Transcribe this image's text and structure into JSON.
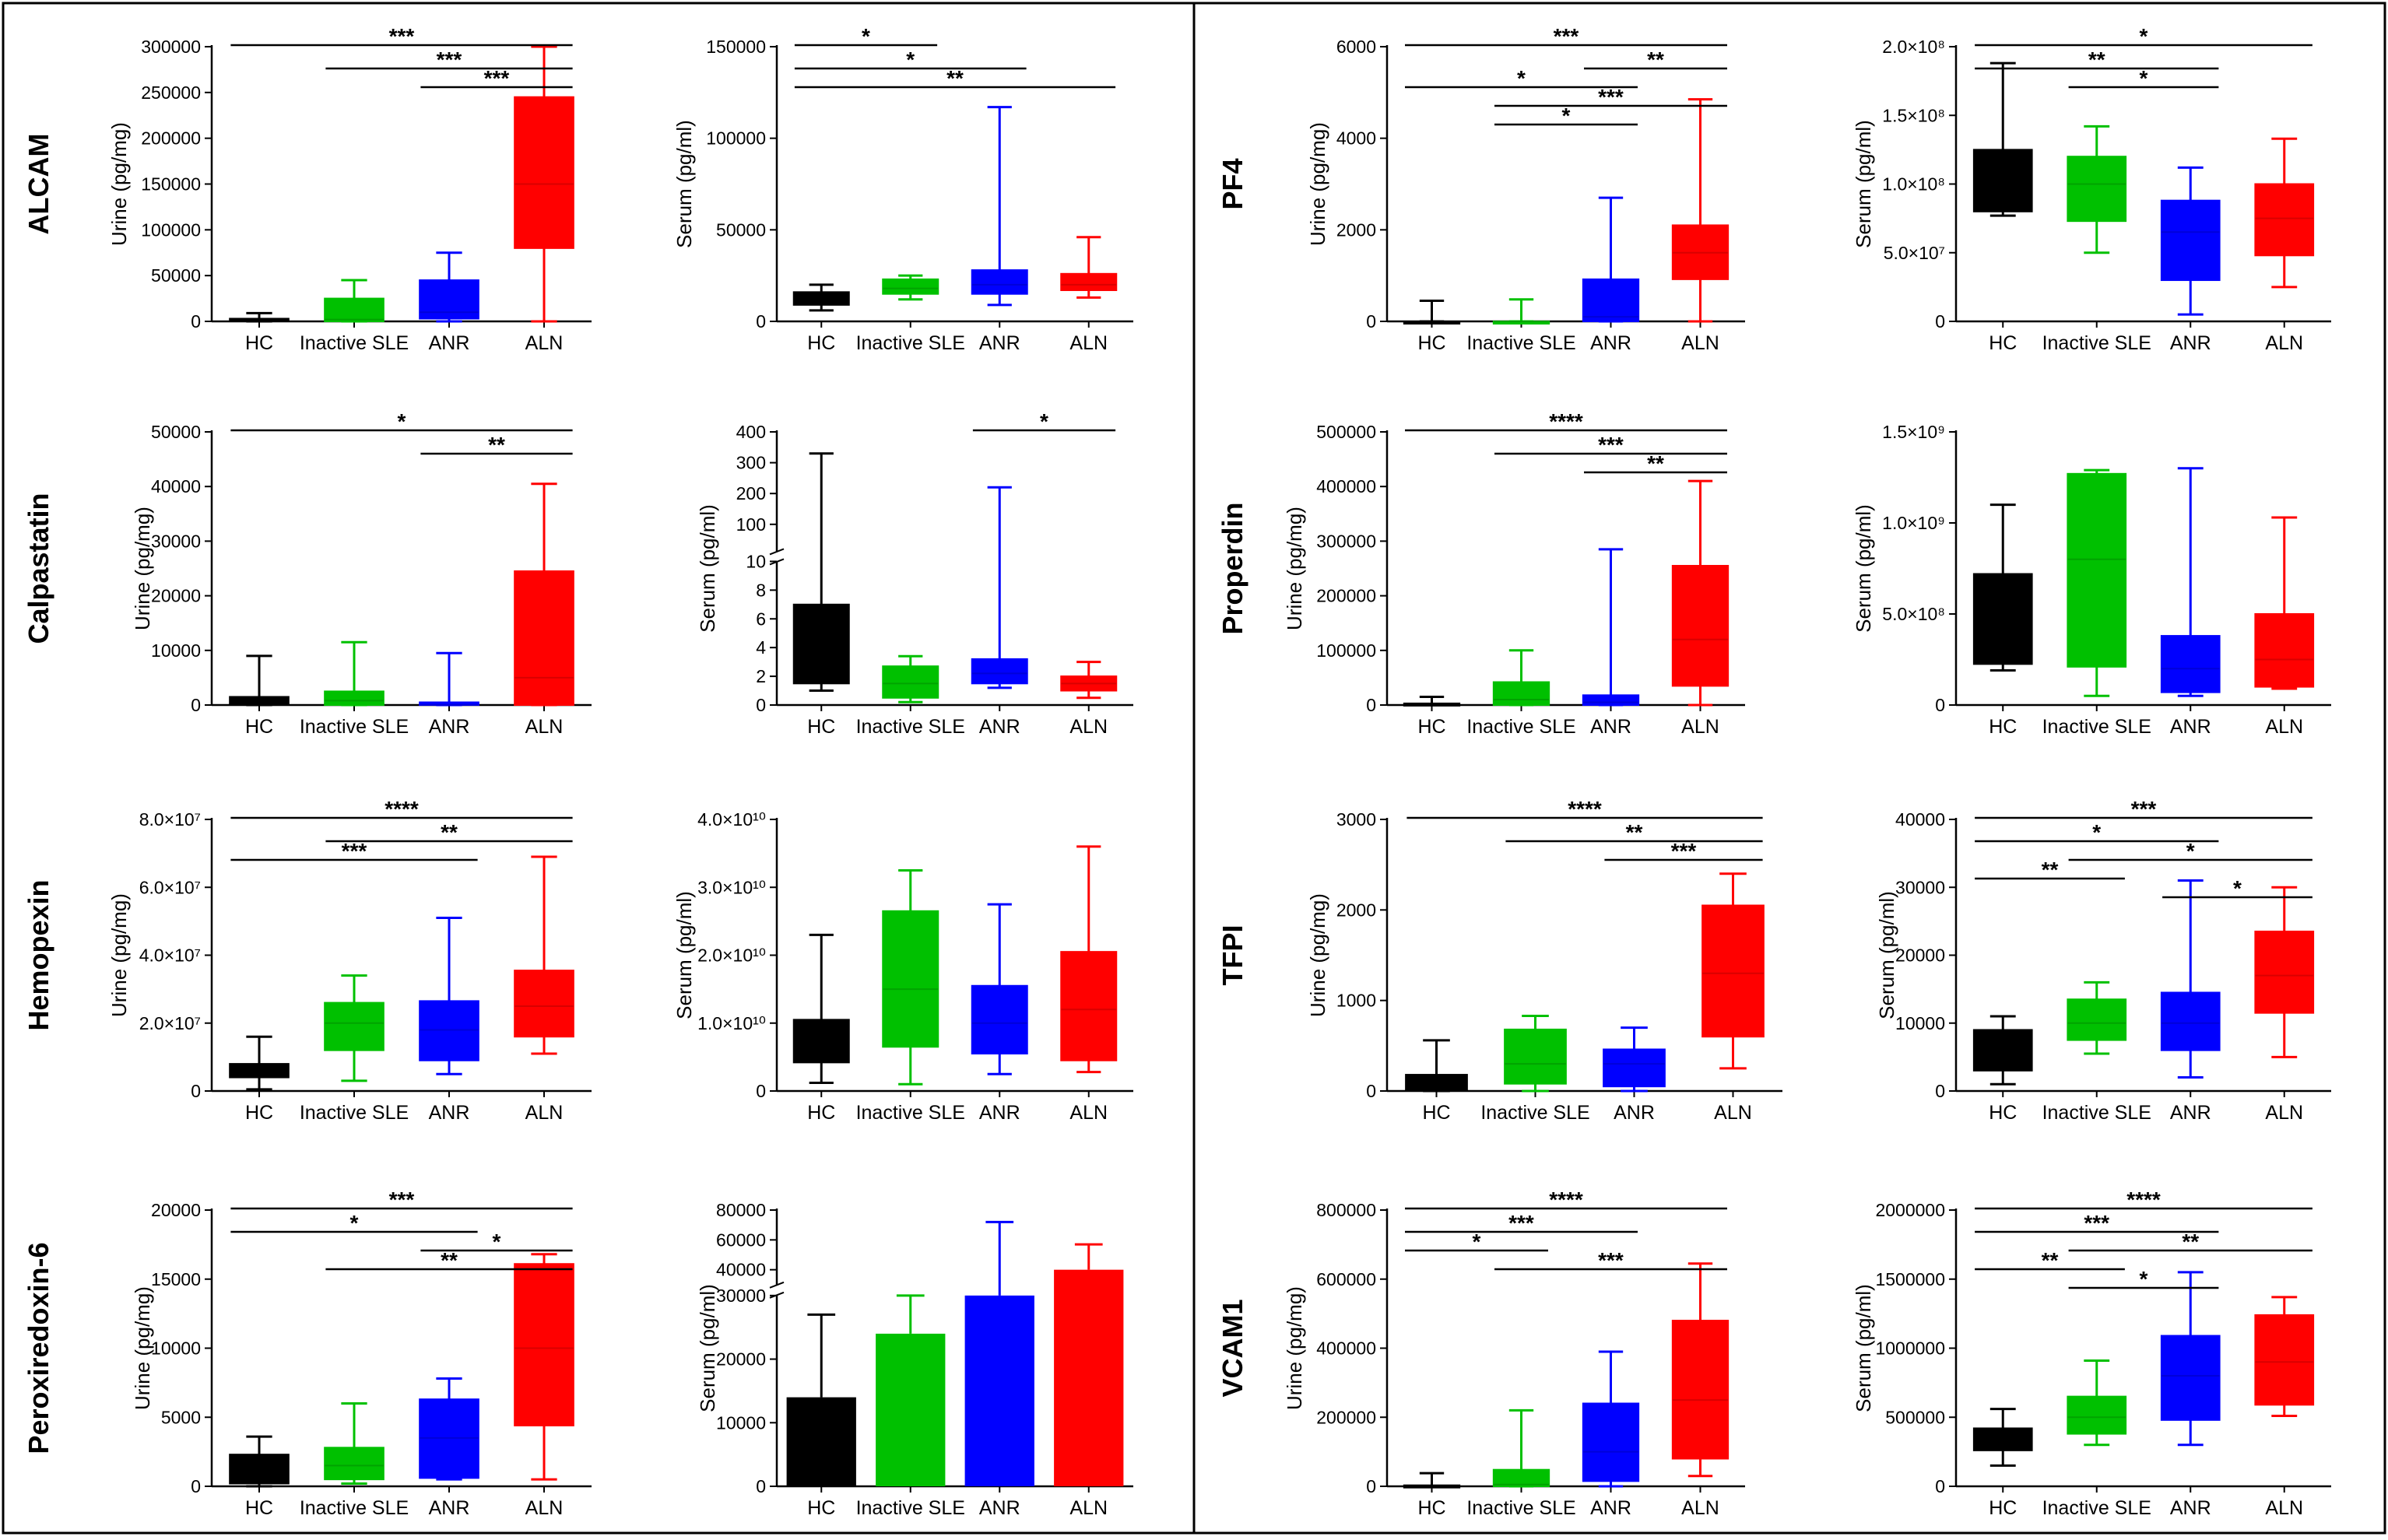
{
  "groups": [
    "HC",
    "Inactive SLE",
    "ANR",
    "ALN"
  ],
  "colors": [
    "#000000",
    "#00c000",
    "#0000ff",
    "#ff0000"
  ],
  "chart_data": [
    {
      "type": "box",
      "marker": "ALCAM",
      "title": "ALCAM",
      "ylabel": "Urine (pg/mg)",
      "ticks": [
        "0",
        "50000",
        "100000",
        "150000",
        "200000",
        "250000",
        "300000"
      ],
      "ylim": [
        0,
        300000
      ],
      "boxes": [
        [
          0,
          0,
          2000,
          3000,
          9000
        ],
        [
          0,
          0,
          2000,
          25000,
          45000
        ],
        [
          0,
          3000,
          10000,
          45000,
          75000
        ],
        [
          0,
          80000,
          150000,
          245000,
          300000
        ]
      ],
      "sig": [
        {
          "from": "HC",
          "to": "ALN",
          "label": "***"
        },
        {
          "from": "Inactive SLE",
          "to": "ALN",
          "label": "***"
        },
        {
          "from": "ANR",
          "to": "ALN",
          "label": "***"
        }
      ]
    },
    {
      "type": "box",
      "marker": "ALCAM",
      "title": "",
      "ylabel": "Serum (pg/ml)",
      "ticks": [
        "0",
        "50000",
        "100000",
        "150000"
      ],
      "ylim": [
        0,
        150000
      ],
      "boxes": [
        [
          6000,
          9000,
          13000,
          16000,
          20000
        ],
        [
          12000,
          15000,
          18000,
          23000,
          25000
        ],
        [
          9000,
          15000,
          20000,
          28000,
          117000
        ],
        [
          13000,
          17000,
          20000,
          26000,
          46000
        ]
      ],
      "sig": [
        {
          "from": "HC",
          "to": "Inactive SLE",
          "label": "*"
        },
        {
          "from": "HC",
          "to": "ANR",
          "label": "*"
        },
        {
          "from": "HC",
          "to": "ALN",
          "label": "**"
        }
      ]
    },
    {
      "type": "box",
      "marker": "PF4",
      "title": "PF4",
      "ylabel": "Urine (pg/mg)",
      "ticks": [
        "0",
        "2000",
        "4000",
        "6000"
      ],
      "ylim": [
        0,
        6000
      ],
      "boxes": [
        [
          0,
          0,
          0,
          0,
          450
        ],
        [
          0,
          0,
          0,
          0,
          480
        ],
        [
          0,
          0,
          100,
          920,
          2700
        ],
        [
          0,
          920,
          1500,
          2100,
          4850
        ]
      ],
      "sig": [
        {
          "from": "HC",
          "to": "ALN",
          "label": "***"
        },
        {
          "from": "ANR",
          "to": "ALN",
          "label": "**"
        },
        {
          "from": "HC",
          "to": "ANR",
          "label": "*"
        },
        {
          "from": "Inactive SLE",
          "to": "ALN",
          "label": "***"
        },
        {
          "from": "Inactive SLE",
          "to": "ANR",
          "label": "*"
        }
      ]
    },
    {
      "type": "box",
      "marker": "PF4",
      "title": "",
      "ylabel": "Serum (pg/ml)",
      "ticks": [
        "0",
        "5.0×10⁷",
        "1.0×10⁸",
        "1.5×10⁸",
        "2.0×10⁸"
      ],
      "ylim": [
        0,
        200000000
      ],
      "boxes": [
        [
          77000000,
          80000000,
          92000000,
          125000000,
          188000000
        ],
        [
          50000000,
          73000000,
          100000000,
          120000000,
          142000000
        ],
        [
          5000000,
          30000000,
          65000000,
          88000000,
          112000000
        ],
        [
          25000000,
          48000000,
          75000000,
          100000000,
          133000000
        ]
      ],
      "sig": [
        {
          "from": "HC",
          "to": "ALN",
          "label": "*"
        },
        {
          "from": "HC",
          "to": "ANR",
          "label": "**"
        },
        {
          "from": "Inactive SLE",
          "to": "ANR",
          "label": "*"
        }
      ]
    },
    {
      "type": "box",
      "marker": "Calpastatin",
      "title": "Calpastatin",
      "ylabel": "Urine (pg/mg)",
      "ticks": [
        "0",
        "10000",
        "20000",
        "30000",
        "40000",
        "50000"
      ],
      "ylim": [
        0,
        50000
      ],
      "boxes": [
        [
          0,
          0,
          500,
          1500,
          9000
        ],
        [
          0,
          0,
          800,
          2500,
          11500
        ],
        [
          0,
          0,
          0,
          500,
          9500
        ],
        [
          0,
          0,
          5000,
          24500,
          40500
        ]
      ],
      "sig": [
        {
          "from": "HC",
          "to": "ALN",
          "label": "*"
        },
        {
          "from": "ANR",
          "to": "ALN",
          "label": "**"
        }
      ]
    },
    {
      "type": "box-broken",
      "marker": "Calpastatin",
      "title": "",
      "ylabel": "Serum (pg/ml)",
      "ticks": [
        "0",
        "2",
        "4",
        "6",
        "8",
        "10",
        "100",
        "200",
        "300",
        "400"
      ],
      "ylim": [
        0,
        400
      ],
      "boxes": [
        [
          1,
          1.5,
          3,
          7,
          330
        ],
        [
          0.2,
          0.5,
          1.5,
          2.7,
          3.4
        ],
        [
          1.2,
          1.5,
          2.2,
          3.2,
          220
        ],
        [
          0.5,
          1,
          1.5,
          2,
          3
        ]
      ],
      "sig": [
        {
          "from": "ANR",
          "to": "ALN",
          "label": "*"
        }
      ]
    },
    {
      "type": "box",
      "marker": "Properdin",
      "title": "Properdin",
      "ylabel": "Urine (pg/mg)",
      "ticks": [
        "0",
        "100000",
        "200000",
        "300000",
        "400000",
        "500000"
      ],
      "ylim": [
        0,
        500000
      ],
      "boxes": [
        [
          0,
          0,
          0,
          3000,
          15000
        ],
        [
          0,
          0,
          10000,
          42000,
          100000
        ],
        [
          0,
          0,
          5000,
          18000,
          285000
        ],
        [
          0,
          35000,
          120000,
          255000,
          410000
        ]
      ],
      "sig": [
        {
          "from": "HC",
          "to": "ALN",
          "label": "****"
        },
        {
          "from": "Inactive SLE",
          "to": "ALN",
          "label": "***"
        },
        {
          "from": "ANR",
          "to": "ALN",
          "label": "**"
        }
      ]
    },
    {
      "type": "box",
      "marker": "Properdin",
      "title": "",
      "ylabel": "Serum (pg/ml)",
      "ticks": [
        "0",
        "5.0×10⁸",
        "1.0×10⁹",
        "1.5×10⁹"
      ],
      "ylim": [
        0,
        1500000000
      ],
      "boxes": [
        [
          190000000,
          225000000,
          400000000,
          720000000,
          1100000000
        ],
        [
          50000000,
          210000000,
          800000000,
          1270000000,
          1290000000
        ],
        [
          50000000,
          70000000,
          200000000,
          380000000,
          1300000000
        ],
        [
          90000000,
          100000000,
          250000000,
          500000000,
          1030000000
        ]
      ],
      "sig": []
    },
    {
      "type": "box",
      "marker": "Hemopexin",
      "title": "Hemopexin",
      "ylabel": "Urine (pg/mg)",
      "ticks": [
        "0",
        "2.0×10⁷",
        "4.0×10⁷",
        "6.0×10⁷",
        "8.0×10⁷"
      ],
      "ylim": [
        0,
        80000000
      ],
      "boxes": [
        [
          500000,
          4000000,
          6000000,
          8000000,
          16000000
        ],
        [
          3000000,
          12000000,
          20000000,
          26000000,
          34000000
        ],
        [
          5000000,
          9000000,
          18000000,
          26500000,
          51000000
        ],
        [
          11000000,
          16000000,
          25000000,
          35500000,
          69000000
        ]
      ],
      "sig": [
        {
          "from": "HC",
          "to": "ALN",
          "label": "****"
        },
        {
          "from": "Inactive SLE",
          "to": "ALN",
          "label": "**"
        },
        {
          "from": "HC",
          "to": "ANR",
          "label": "***"
        }
      ]
    },
    {
      "type": "box",
      "marker": "Hemopexin",
      "title": "",
      "ylabel": "Serum (pg/ml)",
      "ticks": [
        "0",
        "1.0×10¹⁰",
        "2.0×10¹⁰",
        "3.0×10¹⁰",
        "4.0×10¹⁰"
      ],
      "ylim": [
        0,
        40000000000
      ],
      "boxes": [
        [
          1200000000,
          4200000000,
          7000000000,
          10500000000,
          23000000000
        ],
        [
          1000000000,
          6500000000,
          15000000000,
          26500000000,
          32500000000
        ],
        [
          2500000000,
          5500000000,
          10000000000,
          15500000000,
          27500000000
        ],
        [
          2800000000,
          4500000000,
          12000000000,
          20500000000,
          36000000000
        ]
      ],
      "sig": []
    },
    {
      "type": "box",
      "marker": "TFPI",
      "title": "TFPI",
      "ylabel": "Urine (pg/mg)",
      "ticks": [
        "0",
        "1000",
        "2000",
        "3000"
      ],
      "ylim": [
        0,
        3000
      ],
      "boxes": [
        [
          0,
          0,
          50,
          180,
          560
        ],
        [
          0,
          80,
          300,
          680,
          830
        ],
        [
          0,
          50,
          300,
          460,
          700
        ],
        [
          250,
          600,
          1300,
          2050,
          2400
        ]
      ],
      "sig": [
        {
          "from": "HC",
          "to": "ALN",
          "label": "****"
        },
        {
          "from": "Inactive SLE",
          "to": "ALN",
          "label": "**"
        },
        {
          "from": "ANR",
          "to": "ALN",
          "label": "***"
        }
      ]
    },
    {
      "type": "box",
      "marker": "TFPI",
      "title": "",
      "ylabel": "Serum (pg/ml)",
      "ticks": [
        "0",
        "10000",
        "20000",
        "30000",
        "40000"
      ],
      "ylim": [
        0,
        40000
      ],
      "boxes": [
        [
          1000,
          3000,
          5000,
          9000,
          11000
        ],
        [
          5500,
          7500,
          10000,
          13500,
          16000
        ],
        [
          2000,
          6000,
          10000,
          14500,
          31000
        ],
        [
          5000,
          11500,
          17000,
          23500,
          30000
        ]
      ],
      "sig": [
        {
          "from": "HC",
          "to": "ALN",
          "label": "***"
        },
        {
          "from": "HC",
          "to": "ANR",
          "label": "*"
        },
        {
          "from": "Inactive SLE",
          "to": "ALN",
          "label": "*"
        },
        {
          "from": "HC",
          "to": "Inactive SLE",
          "label": "**"
        },
        {
          "from": "ANR",
          "to": "ALN",
          "label": "*"
        }
      ]
    },
    {
      "type": "box",
      "marker": "Peroxiredoxin-6",
      "title": "Peroxiredoxin-6",
      "ylabel": "Urine (pg/mg)",
      "ticks": [
        "0",
        "5000",
        "10000",
        "15000",
        "20000"
      ],
      "ylim": [
        0,
        20000
      ],
      "boxes": [
        [
          0,
          200,
          1200,
          2300,
          3600
        ],
        [
          200,
          500,
          1500,
          2800,
          6000
        ],
        [
          500,
          600,
          3500,
          6300,
          7800
        ],
        [
          500,
          4400,
          10000,
          16100,
          16800
        ]
      ],
      "sig": [
        {
          "from": "HC",
          "to": "ALN",
          "label": "***"
        },
        {
          "from": "HC",
          "to": "ANR",
          "label": "*"
        },
        {
          "from": "ANR",
          "to": "ALN",
          "label": "*"
        },
        {
          "from": "Inactive SLE",
          "to": "ALN",
          "label": "**"
        }
      ]
    },
    {
      "type": "bar-broken",
      "marker": "Peroxiredoxin-6",
      "title": "",
      "ylabel": "Serum (pg/ml)",
      "ticks": [
        "0",
        "10000",
        "20000",
        "30000",
        "40000",
        "60000",
        "80000"
      ],
      "ylim": [
        0,
        80000
      ],
      "bars": [
        {
          "group": "HC",
          "value": 14000,
          "error": 27000
        },
        {
          "group": "Inactive SLE",
          "value": 24000,
          "error": 30000
        },
        {
          "group": "ANR",
          "value": 30000,
          "error": 72000
        },
        {
          "group": "ALN",
          "value": 40000,
          "error": 57000
        }
      ],
      "sig": []
    },
    {
      "type": "box",
      "marker": "VCAM1",
      "title": "VCAM1",
      "ylabel": "Urine (pg/mg)",
      "ticks": [
        "0",
        "200000",
        "400000",
        "600000",
        "800000"
      ],
      "ylim": [
        0,
        800000
      ],
      "boxes": [
        [
          0,
          0,
          0,
          3000,
          38000
        ],
        [
          0,
          0,
          5000,
          48000,
          220000
        ],
        [
          0,
          15000,
          100000,
          240000,
          390000
        ],
        [
          30000,
          80000,
          250000,
          480000,
          645000
        ]
      ],
      "sig": [
        {
          "from": "HC",
          "to": "ALN",
          "label": "****"
        },
        {
          "from": "HC",
          "to": "ANR",
          "label": "***"
        },
        {
          "from": "HC",
          "to": "Inactive SLE",
          "label": "*"
        },
        {
          "from": "Inactive SLE",
          "to": "ALN",
          "label": "***"
        }
      ]
    },
    {
      "type": "box",
      "marker": "VCAM1",
      "title": "",
      "ylabel": "Serum (pg/ml)",
      "ticks": [
        "0",
        "500000",
        "1000000",
        "1500000",
        "2000000"
      ],
      "ylim": [
        0,
        2000000
      ],
      "boxes": [
        [
          150000,
          260000,
          330000,
          420000,
          560000
        ],
        [
          300000,
          380000,
          500000,
          650000,
          910000
        ],
        [
          300000,
          480000,
          800000,
          1090000,
          1550000
        ],
        [
          510000,
          590000,
          900000,
          1240000,
          1370000
        ]
      ],
      "sig": [
        {
          "from": "HC",
          "to": "ALN",
          "label": "****"
        },
        {
          "from": "HC",
          "to": "ANR",
          "label": "***"
        },
        {
          "from": "Inactive SLE",
          "to": "ALN",
          "label": "**"
        },
        {
          "from": "HC",
          "to": "Inactive SLE",
          "label": "**"
        },
        {
          "from": "Inactive SLE",
          "to": "ANR",
          "label": "*"
        }
      ]
    }
  ]
}
